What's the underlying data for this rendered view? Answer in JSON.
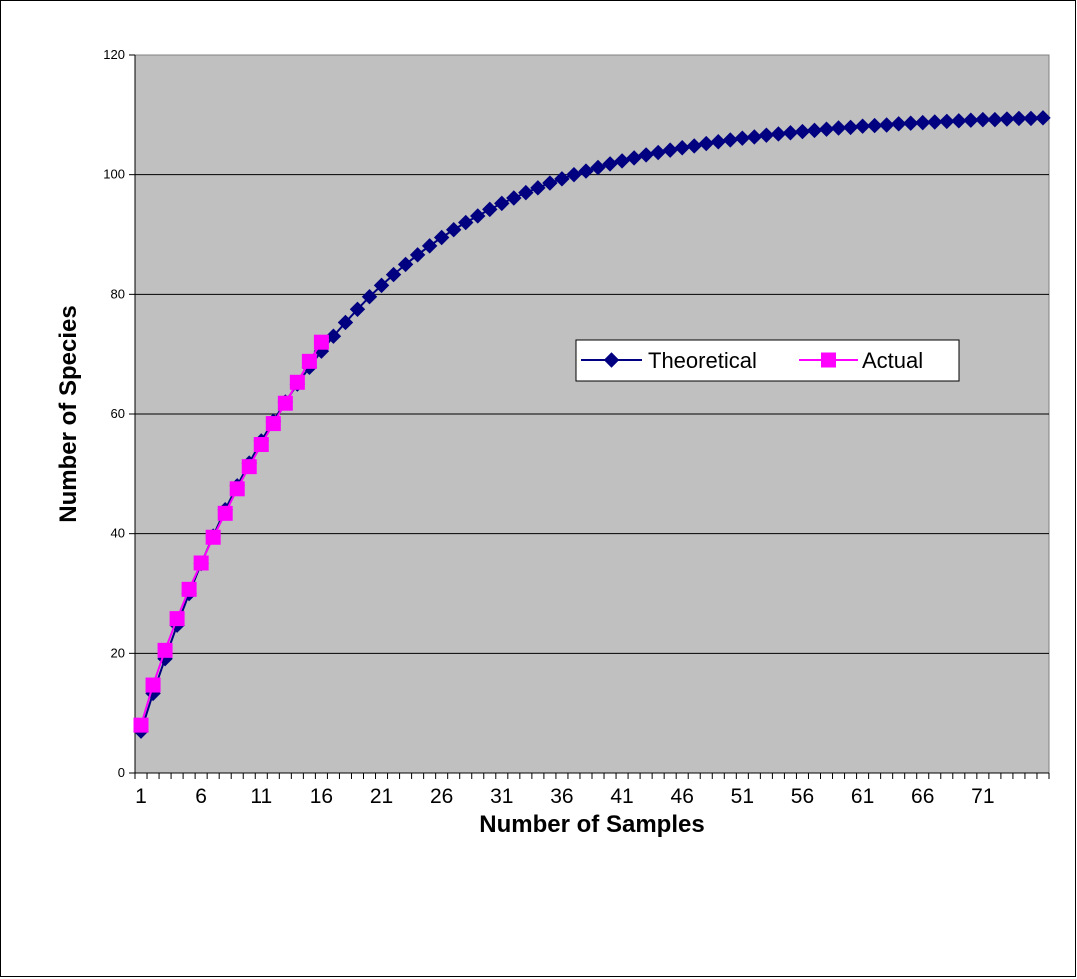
{
  "chart_data": {
    "type": "line",
    "title": "",
    "xlabel": "Number of Samples",
    "ylabel": "Number of Species",
    "x_tick_labels": [
      "1",
      "6",
      "11",
      "16",
      "21",
      "26",
      "31",
      "36",
      "41",
      "46",
      "51",
      "56",
      "61",
      "66",
      "71"
    ],
    "y_tick_labels": [
      "0",
      "20",
      "40",
      "60",
      "80",
      "100",
      "120"
    ],
    "xlim": [
      1,
      76
    ],
    "ylim": [
      0,
      120
    ],
    "grid": "horizontal",
    "legend_position": "center-right",
    "plot_background": "#C0C0C0",
    "series": [
      {
        "name": "Theoretical",
        "color": "#000080",
        "marker": "diamond",
        "x": [
          1,
          2,
          3,
          4,
          5,
          6,
          7,
          8,
          9,
          10,
          11,
          12,
          13,
          14,
          15,
          16,
          17,
          18,
          19,
          20,
          21,
          22,
          23,
          24,
          25,
          26,
          27,
          28,
          29,
          30,
          31,
          32,
          33,
          34,
          35,
          36,
          37,
          38,
          39,
          40,
          41,
          42,
          43,
          44,
          45,
          46,
          47,
          48,
          49,
          50,
          51,
          52,
          53,
          54,
          55,
          56,
          57,
          58,
          59,
          60,
          61,
          62,
          63,
          64,
          65,
          66,
          67,
          68,
          69,
          70,
          71,
          72,
          73,
          74,
          75,
          76
        ],
        "values": [
          7.0,
          13.3,
          19.1,
          24.7,
          30.0,
          35.0,
          39.6,
          44.0,
          48.0,
          51.8,
          55.5,
          58.8,
          62.0,
          65.0,
          67.8,
          70.5,
          73.0,
          75.3,
          77.5,
          79.6,
          81.5,
          83.3,
          85.0,
          86.6,
          88.1,
          89.5,
          90.8,
          92.0,
          93.1,
          94.2,
          95.2,
          96.1,
          97.0,
          97.8,
          98.6,
          99.3,
          100.0,
          100.6,
          101.2,
          101.8,
          102.3,
          102.8,
          103.3,
          103.7,
          104.1,
          104.5,
          104.8,
          105.2,
          105.5,
          105.8,
          106.1,
          106.3,
          106.6,
          106.8,
          107.0,
          107.2,
          107.4,
          107.6,
          107.8,
          107.9,
          108.1,
          108.2,
          108.3,
          108.5,
          108.6,
          108.7,
          108.8,
          108.9,
          109.0,
          109.1,
          109.2,
          109.2,
          109.3,
          109.4,
          109.4,
          109.5
        ]
      },
      {
        "name": "Actual",
        "color": "#FF00FF",
        "marker": "square",
        "x": [
          1,
          2,
          3,
          4,
          5,
          6,
          7,
          8,
          9,
          10,
          11,
          12,
          13,
          14,
          15,
          16
        ],
        "values": [
          8.0,
          14.7,
          20.5,
          25.8,
          30.7,
          35.1,
          39.4,
          43.4,
          47.5,
          51.2,
          54.9,
          58.4,
          61.8,
          65.3,
          68.8,
          72.0
        ]
      }
    ]
  }
}
